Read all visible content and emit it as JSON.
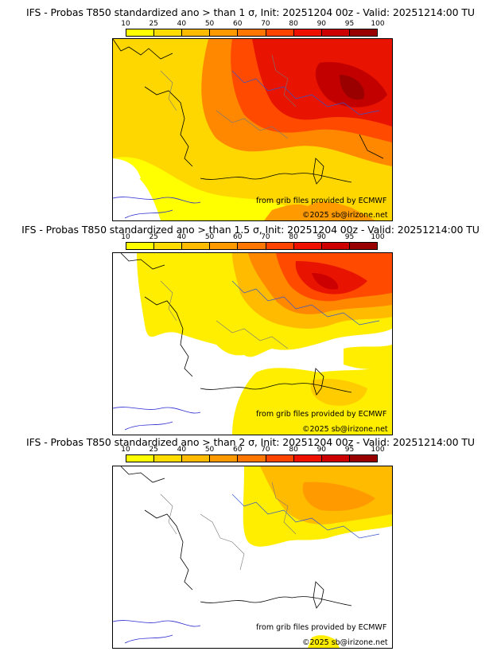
{
  "legend": {
    "ticks": [
      "10",
      "25",
      "40",
      "50",
      "60",
      "70",
      "80",
      "90",
      "95",
      "100"
    ],
    "colors": [
      "#ffff00",
      "#ffdd00",
      "#ffbb00",
      "#ff9900",
      "#ff7700",
      "#ff4400",
      "#ee1100",
      "#cc0000",
      "#990000",
      "#660000"
    ]
  },
  "panels": [
    {
      "title": "IFS - Probas T850  standardized ano > than 1 σ, Init: 20251204 00z - Valid: 20251214:00 TU",
      "credit_source": "from grib files provided by ECMWF",
      "credit_copyright": "©2025 sb@irizone.net"
    },
    {
      "title": "IFS - Probas T850  standardized ano > than 1.5 σ, Init: 20251204 00z - Valid: 20251214:00 TU",
      "credit_source": "from grib files provided by ECMWF",
      "credit_copyright": "©2025 sb@irizone.net"
    },
    {
      "title": "IFS - Probas T850  standardized ano > than 2 σ, Init: 20251204 00z - Valid: 20251214:00 TU",
      "credit_source": "from grib files provided by ECMWF",
      "credit_copyright": "©2025 sb@irizone.net"
    }
  ]
}
